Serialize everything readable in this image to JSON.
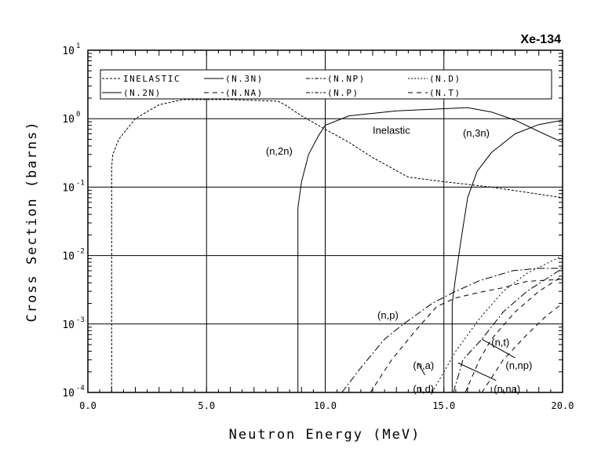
{
  "chart_data": {
    "type": "line",
    "title": "Xe-134",
    "xlabel": "Neutron Energy (MeV)",
    "ylabel": "Cross Section (barns)",
    "xlim": [
      0,
      20
    ],
    "ylim": [
      0.0001,
      10
    ],
    "yscale": "log",
    "grid": true,
    "legend_position": "top",
    "x_ticks": [
      "0.0",
      "5.0",
      "10.0",
      "15.0",
      "20.0"
    ],
    "x_tick_values": [
      0,
      5,
      10,
      15,
      20
    ],
    "y_ticks": [
      {
        "base": "10",
        "exp": "1",
        "value": 10
      },
      {
        "base": "10",
        "exp": "0",
        "value": 1
      },
      {
        "base": "10",
        "exp": "-1",
        "value": 0.1
      },
      {
        "base": "10",
        "exp": "-2",
        "value": 0.01
      },
      {
        "base": "10",
        "exp": "-3",
        "value": 0.001
      },
      {
        "base": "10",
        "exp": "-4",
        "value": 0.0001
      }
    ],
    "series": [
      {
        "name": "INELASTIC",
        "legend": "INELASTIC",
        "dash": "3,2",
        "x": [
          1.0,
          1.0,
          1.05,
          1.3,
          2.0,
          3.0,
          4.0,
          6.0,
          8.0,
          8.3,
          9.0,
          10.0,
          11.0,
          12.0,
          13.5,
          15.0,
          17.0,
          20.0
        ],
        "y": [
          0.0001,
          0.2,
          0.3,
          0.5,
          1.0,
          1.6,
          1.9,
          1.9,
          1.8,
          1.6,
          1.1,
          0.7,
          0.45,
          0.27,
          0.14,
          0.12,
          0.1,
          0.07
        ]
      },
      {
        "name": "(N,2N)",
        "legend": "(N,2N)",
        "dash": "",
        "x": [
          8.85,
          8.85,
          9.0,
          9.3,
          9.7,
          10.0,
          11.0,
          13.0,
          15.0,
          16.0,
          17.0,
          18.0,
          19.0,
          20.0
        ],
        "y": [
          0.0001,
          0.05,
          0.12,
          0.3,
          0.55,
          0.8,
          1.1,
          1.3,
          1.4,
          1.45,
          1.25,
          0.95,
          0.65,
          0.45
        ]
      },
      {
        "name": "(N,3N)",
        "legend": "(N,3N)",
        "dash": "",
        "x": [
          15.35,
          15.35,
          15.5,
          15.7,
          16.0,
          16.4,
          17.0,
          18.0,
          19.0,
          20.0
        ],
        "y": [
          0.0001,
          0.002,
          0.005,
          0.015,
          0.07,
          0.17,
          0.32,
          0.6,
          0.82,
          0.95
        ]
      },
      {
        "name": "(N,NA)",
        "legend": "(N,NA)",
        "dash": "6,5",
        "x": [
          15.9,
          16.5,
          17.0,
          18.0,
          19.0,
          20.0
        ],
        "y": [
          0.0001,
          0.0003,
          0.0006,
          0.0015,
          0.003,
          0.005
        ]
      },
      {
        "name": "(N,NP)",
        "legend": "(N,NP)",
        "dash": "9,3,2,3",
        "x": [
          15.4,
          15.8,
          16.6,
          17.5,
          18.5,
          20.0
        ],
        "y": [
          0.0001,
          0.0003,
          0.0006,
          0.0015,
          0.003,
          0.0065
        ]
      },
      {
        "name": "(N,P)",
        "legend": "(N,P)",
        "dash": "9,3,2,3",
        "x": [
          10.7,
          11.5,
          12.5,
          13.3,
          14.5,
          15.4,
          16.5,
          17.9,
          19.0,
          20.0
        ],
        "y": [
          0.0001,
          0.00023,
          0.0006,
          0.001,
          0.002,
          0.0029,
          0.0043,
          0.006,
          0.0065,
          0.0065
        ]
      },
      {
        "name": "(N,D)",
        "legend": "(N,D)",
        "dash": "2,3",
        "x": [
          14.5,
          15.0,
          15.5,
          16.5,
          17.5,
          18.5,
          20.0
        ],
        "y": [
          0.0001,
          0.0002,
          0.0004,
          0.0012,
          0.003,
          0.0055,
          0.01
        ]
      },
      {
        "name": "(N,T)",
        "legend": "(N,T)",
        "dash": "6,5",
        "x": [
          16.6,
          17.5,
          18.5,
          19.3,
          20.0
        ],
        "y": [
          0.0001,
          0.0003,
          0.0007,
          0.0013,
          0.002
        ]
      },
      {
        "name": "(N,A)",
        "legend": "(N,NA)",
        "dash": "6,5",
        "x": [
          11.9,
          12.8,
          13.8,
          14.7,
          15.5,
          16.5,
          17.5,
          18.5,
          20.0
        ],
        "y": [
          0.0001,
          0.0003,
          0.0008,
          0.0018,
          0.0024,
          0.0029,
          0.0034,
          0.0042,
          0.0045
        ]
      }
    ],
    "legend": [
      [
        "INELASTIC",
        "(N.3N)",
        "(N.NP)",
        "(N.D)"
      ],
      [
        "(N.2N)",
        "(N.NA)",
        "(N.P)",
        "(N.T)"
      ]
    ],
    "annotations": [
      {
        "text": "Inelastic",
        "x": 12.0,
        "y": 0.6
      },
      {
        "text": "(n,2n)",
        "x": 7.5,
        "y": 0.3
      },
      {
        "text": "(n,3n)",
        "x": 15.8,
        "y": 0.55
      },
      {
        "text": "(n,p)",
        "x": 12.2,
        "y": 0.0012
      },
      {
        "text": "(n,a)",
        "x": 13.7,
        "y": 0.00022
      },
      {
        "text": "(n,d)",
        "x": 13.7,
        "y": 0.0001
      },
      {
        "text": "(n,t)",
        "x": 17.0,
        "y": 0.00048
      },
      {
        "text": "(n,np)",
        "x": 17.6,
        "y": 0.00022
      },
      {
        "text": "(n,na)",
        "x": 17.1,
        "y": 0.0001
      }
    ]
  }
}
